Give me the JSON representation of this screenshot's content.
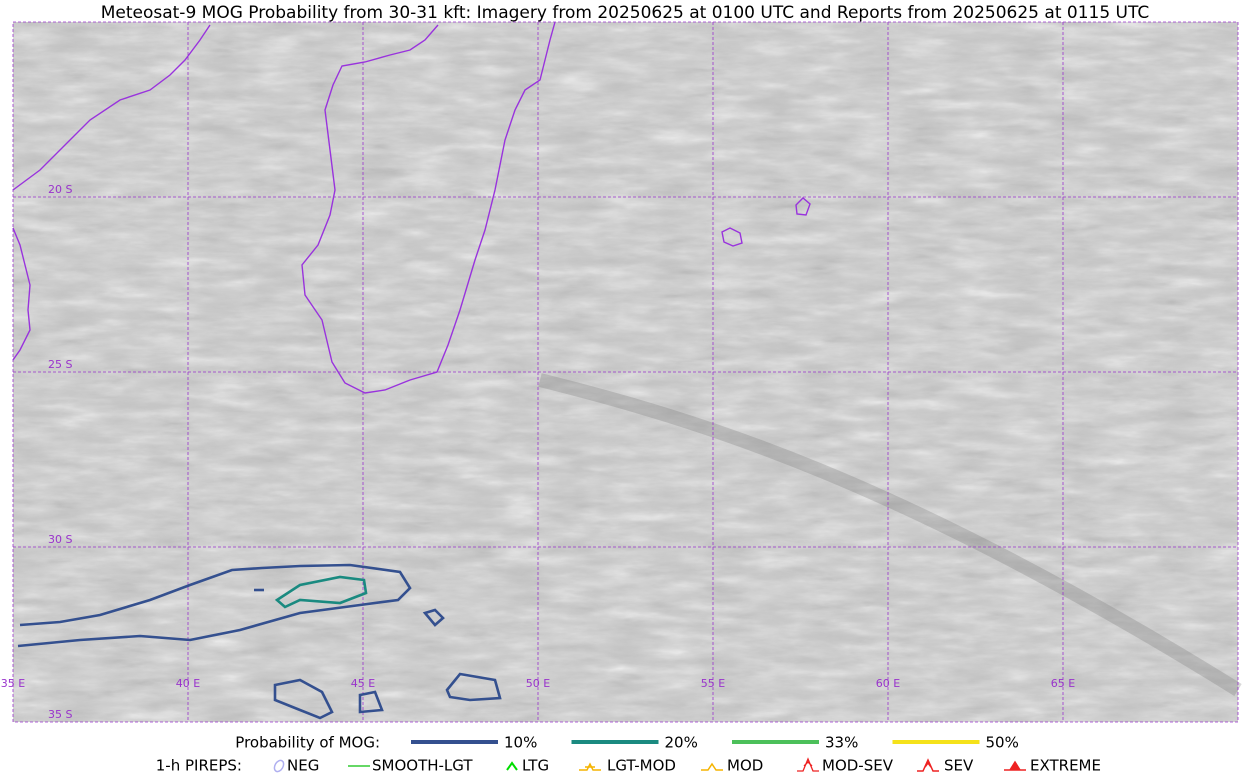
{
  "title": "Meteosat-9 MOG Probability from 30-31 kft: Imagery from 20250625 at 0100 UTC and Reports from 20250625 at 0115 UTC",
  "map": {
    "lon_labels": [
      "35 E",
      "40 E",
      "45 E",
      "50 E",
      "55 E",
      "60 E",
      "65 E"
    ],
    "lat_labels": [
      "20 S",
      "25 S",
      "30 S",
      "35 S"
    ]
  },
  "legend": {
    "probability": {
      "title": "Probability of MOG:",
      "items": [
        {
          "label": "10%",
          "color": "#34508f"
        },
        {
          "label": "20%",
          "color": "#1a8a80"
        },
        {
          "label": "33%",
          "color": "#4cc05a"
        },
        {
          "label": "50%",
          "color": "#f5e21a"
        }
      ]
    },
    "pireps": {
      "title": "1-h PIREPS:",
      "items": [
        {
          "label": "NEG",
          "color": "#b0b0f0"
        },
        {
          "label": "SMOOTH-LGT",
          "color": "#33cc33"
        },
        {
          "label": "LTG",
          "color": "#00dd00"
        },
        {
          "label": "LGT-MOD",
          "color": "#f5b400"
        },
        {
          "label": "MOD",
          "color": "#f5b400"
        },
        {
          "label": "MOD-SEV",
          "color": "#ee2222"
        },
        {
          "label": "SEV",
          "color": "#ee2222"
        },
        {
          "label": "EXTREME",
          "color": "#ee2222"
        }
      ]
    }
  }
}
